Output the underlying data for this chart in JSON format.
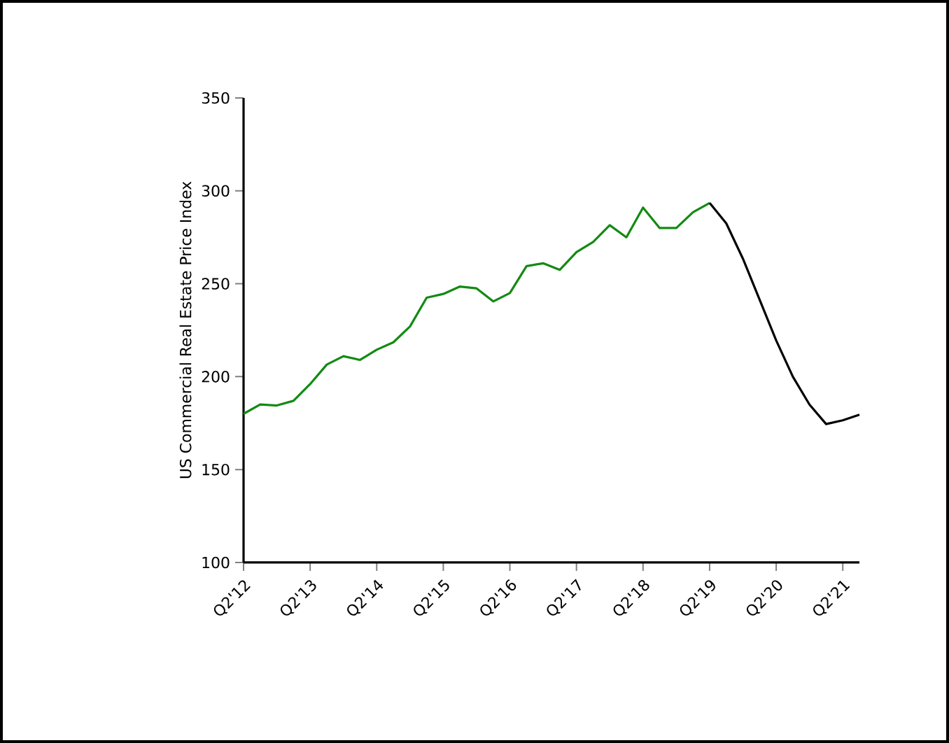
{
  "chart_data": {
    "type": "line",
    "ylabel": "US Commercial Real Estate Price Index",
    "categories": [
      "Q2'12",
      null,
      null,
      null,
      "Q2'13",
      null,
      null,
      null,
      "Q2'14",
      null,
      null,
      null,
      "Q2'15",
      null,
      null,
      null,
      "Q2'16",
      null,
      null,
      null,
      "Q2'17",
      null,
      null,
      null,
      "Q2'18",
      null,
      null,
      null,
      "Q2'19",
      null,
      null,
      null,
      "Q2'20",
      null,
      null,
      null,
      "Q2'21",
      null
    ],
    "series": [
      {
        "color": "#138a13",
        "values": [
          180,
          185,
          184.5,
          187,
          196,
          206.5,
          211,
          209,
          214.5,
          218.5,
          227,
          242.5,
          244.5,
          248.5,
          247.5,
          240.5,
          245,
          259.5,
          261,
          257.5,
          267,
          272.5,
          281.5,
          275,
          291,
          280,
          280,
          288.5,
          293.5,
          null,
          null,
          null,
          null,
          null,
          null,
          null,
          null,
          null
        ]
      },
      {
        "color": "#000000",
        "values": [
          null,
          null,
          null,
          null,
          null,
          null,
          null,
          null,
          null,
          null,
          null,
          null,
          null,
          null,
          null,
          null,
          null,
          null,
          null,
          null,
          null,
          null,
          null,
          null,
          null,
          null,
          null,
          null,
          293.5,
          282.5,
          263.5,
          241.5,
          219.5,
          200,
          185,
          174.5,
          176.5,
          179.5
        ]
      }
    ],
    "ylim": [
      100,
      350
    ],
    "yticks": [
      100,
      150,
      200,
      250,
      300,
      350
    ],
    "marker": "none",
    "line_style": "solid"
  }
}
